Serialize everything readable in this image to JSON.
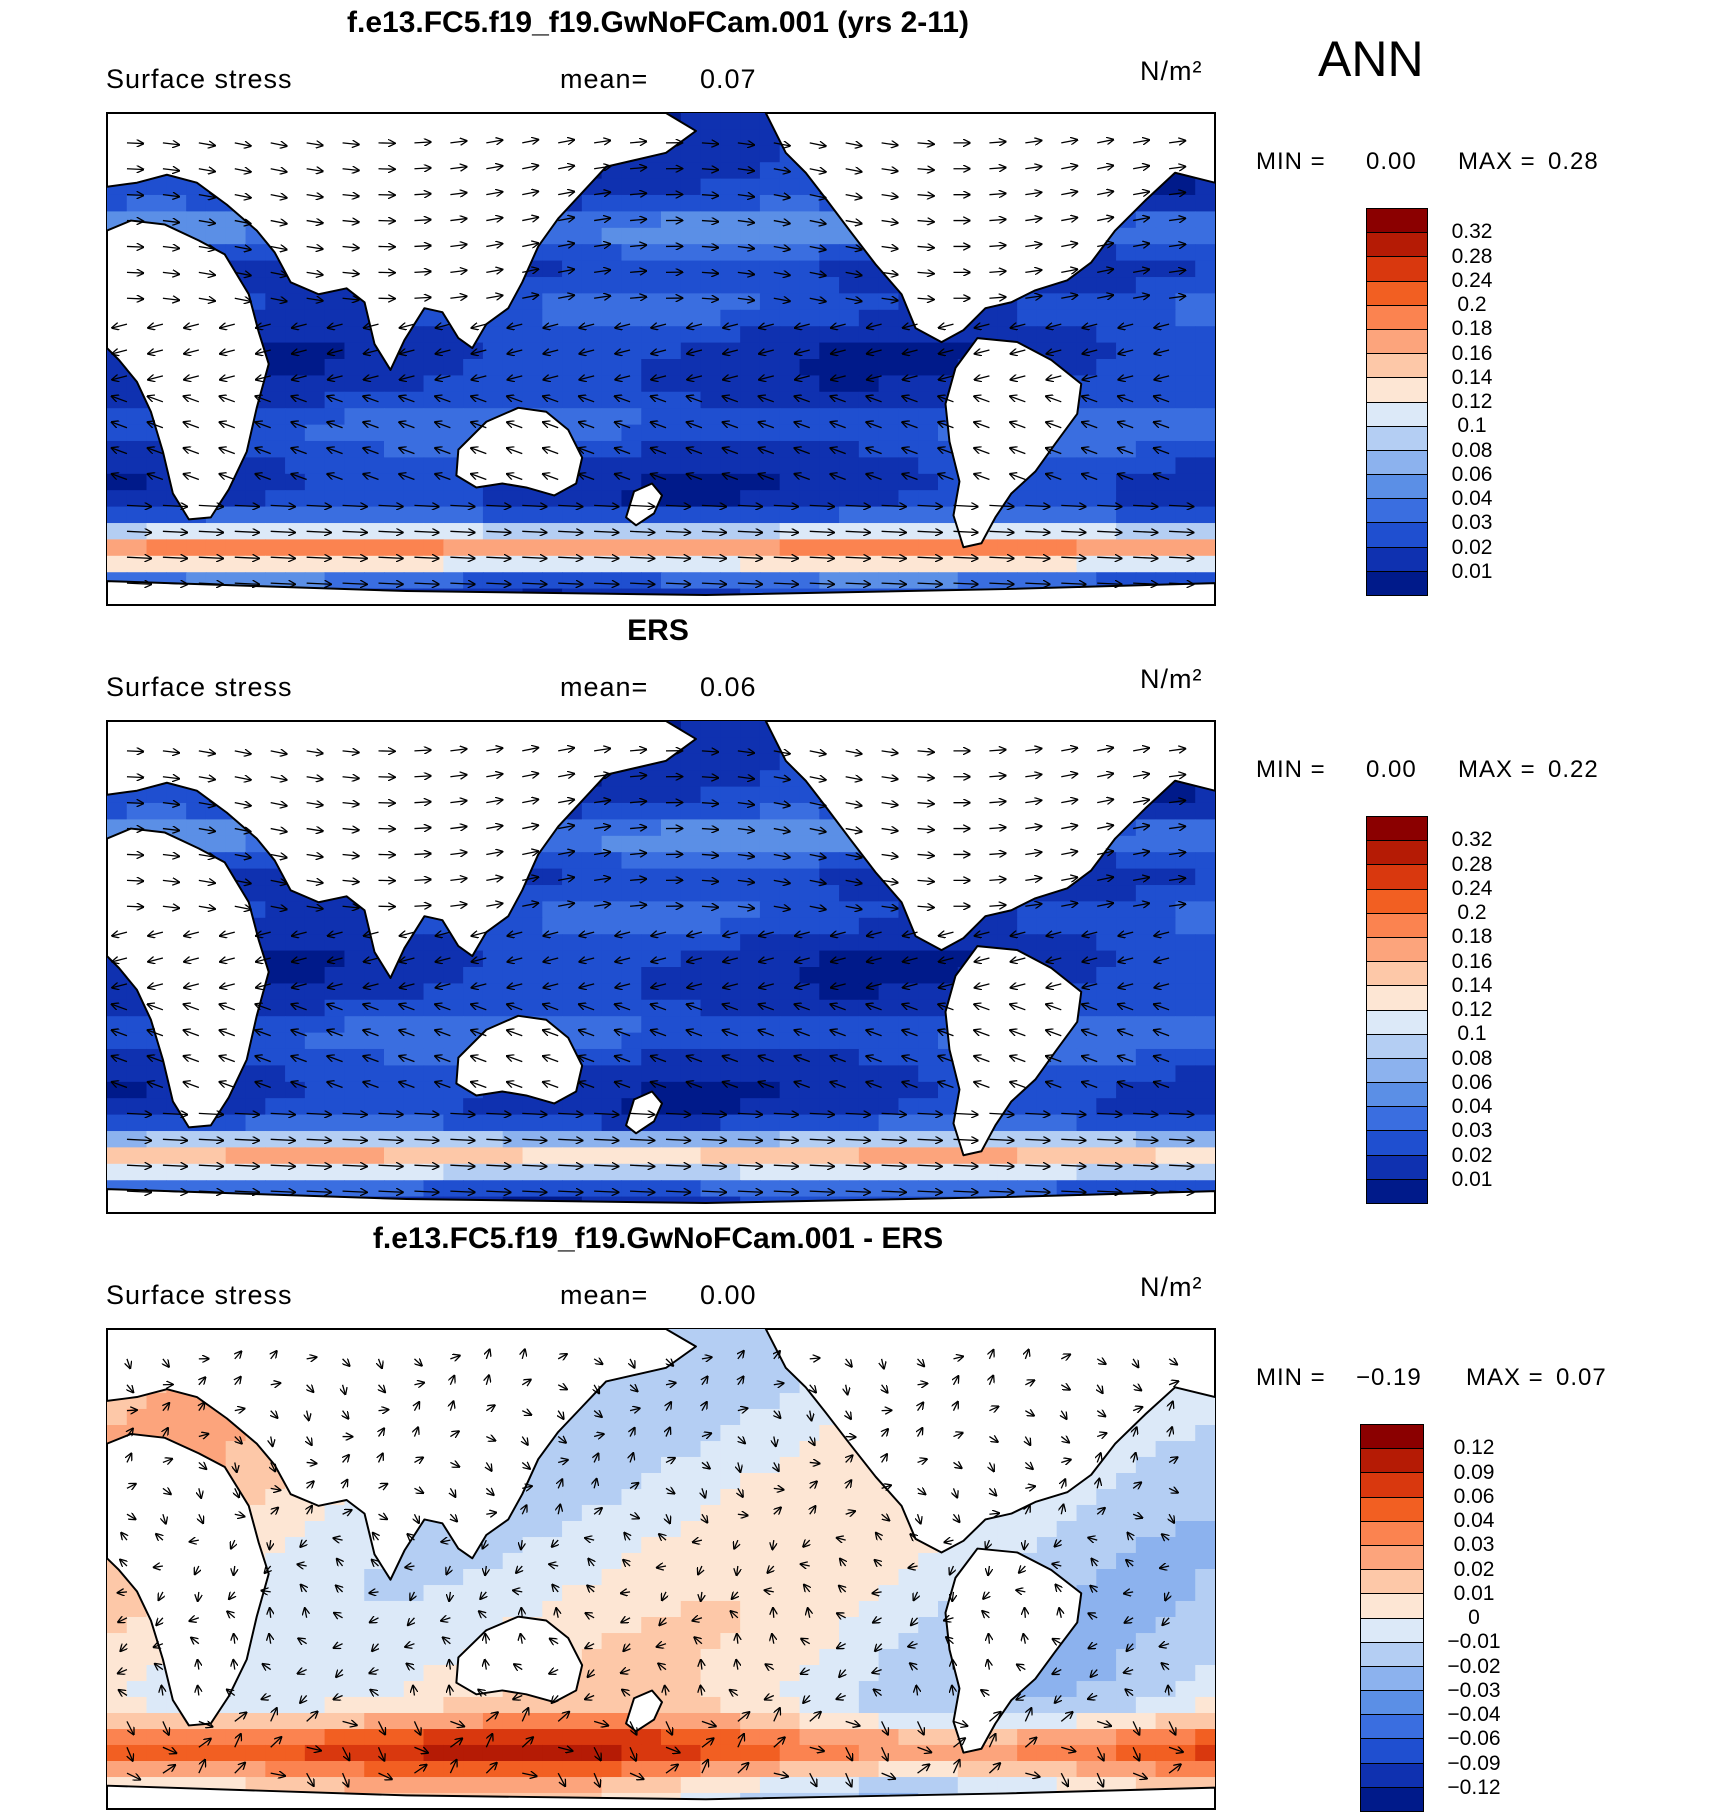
{
  "season": "ANN",
  "panels": [
    {
      "id": "model",
      "title": "f.e13.FC5.f19_f19.GwNoFCam.001 (yrs 2-11)",
      "variable": "Surface stress",
      "mean_label": "mean=",
      "mean_value": "0.07",
      "units": "N/m²",
      "min_label": "MIN =",
      "min_value": "0.00",
      "max_label": "MAX =",
      "max_value": "0.28",
      "colorbar": {
        "levels": [
          "0.32",
          "0.28",
          "0.24",
          "0.2",
          "0.18",
          "0.16",
          "0.14",
          "0.12",
          "0.1",
          "0.08",
          "0.06",
          "0.04",
          "0.03",
          "0.02",
          "0.01"
        ],
        "colors": [
          "#8b0000",
          "#b51b05",
          "#d9380e",
          "#f25f22",
          "#fb8350",
          "#fca47c",
          "#fdc8a8",
          "#fde6d4",
          "#dce9f8",
          "#b4cef3",
          "#8cb2ee",
          "#5b8fe6",
          "#3a6ee0",
          "#1f4fd0",
          "#0f31b0",
          "#001a8a"
        ]
      }
    },
    {
      "id": "obs",
      "title": "ERS",
      "variable": "Surface stress",
      "mean_label": "mean=",
      "mean_value": "0.06",
      "units": "N/m²",
      "min_label": "MIN =",
      "min_value": "0.00",
      "max_label": "MAX =",
      "max_value": "0.22",
      "colorbar": {
        "levels": [
          "0.32",
          "0.28",
          "0.24",
          "0.2",
          "0.18",
          "0.16",
          "0.14",
          "0.12",
          "0.1",
          "0.08",
          "0.06",
          "0.04",
          "0.03",
          "0.02",
          "0.01"
        ],
        "colors": [
          "#8b0000",
          "#b51b05",
          "#d9380e",
          "#f25f22",
          "#fb8350",
          "#fca47c",
          "#fdc8a8",
          "#fde6d4",
          "#dce9f8",
          "#b4cef3",
          "#8cb2ee",
          "#5b8fe6",
          "#3a6ee0",
          "#1f4fd0",
          "#0f31b0",
          "#001a8a"
        ]
      }
    },
    {
      "id": "diff",
      "title": "f.e13.FC5.f19_f19.GwNoFCam.001 - ERS",
      "variable": "Surface stress",
      "mean_label": "mean=",
      "mean_value": "0.00",
      "units": "N/m²",
      "min_label": "MIN =",
      "min_value": "−0.19",
      "max_label": "MAX =",
      "max_value": "0.07",
      "colorbar": {
        "levels": [
          "0.12",
          "0.09",
          "0.06",
          "0.04",
          "0.03",
          "0.02",
          "0.01",
          "0",
          "−0.01",
          "−0.02",
          "−0.03",
          "−0.04",
          "−0.06",
          "−0.09",
          "−0.12"
        ],
        "colors": [
          "#8b0000",
          "#b51b05",
          "#d9380e",
          "#f25f22",
          "#fb8350",
          "#fca47c",
          "#fdc8a8",
          "#fde6d4",
          "#dce9f8",
          "#b4cef3",
          "#8cb2ee",
          "#5b8fe6",
          "#3a6ee0",
          "#1f4fd0",
          "#0f31b0",
          "#001a8a"
        ]
      }
    }
  ]
}
